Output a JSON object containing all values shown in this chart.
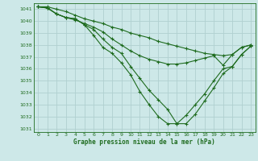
{
  "title": "Graphe pression niveau de la mer (hPa)",
  "bg_color": "#cde8e8",
  "grid_color": "#b0d0d0",
  "line_color": "#1e6b1e",
  "xlim": [
    -0.5,
    23.5
  ],
  "ylim": [
    1030.7,
    1041.5
  ],
  "yticks": [
    1031,
    1032,
    1033,
    1034,
    1035,
    1036,
    1037,
    1038,
    1039,
    1040,
    1041
  ],
  "xticks": [
    0,
    1,
    2,
    3,
    4,
    5,
    6,
    7,
    8,
    9,
    10,
    11,
    12,
    13,
    14,
    15,
    16,
    17,
    18,
    19,
    20,
    21,
    22,
    23
  ],
  "series": [
    {
      "x": [
        0,
        1,
        2,
        3,
        4,
        5,
        6,
        7,
        8,
        9,
        10,
        11,
        12,
        13,
        14,
        15,
        16,
        17,
        18,
        19,
        20,
        21,
        22,
        23
      ],
      "y": [
        1041.2,
        1041.2,
        1041.0,
        1040.8,
        1040.5,
        1040.2,
        1040.0,
        1039.8,
        1039.5,
        1039.3,
        1039.0,
        1038.8,
        1038.6,
        1038.3,
        1038.1,
        1037.9,
        1037.7,
        1037.5,
        1037.3,
        1037.2,
        1037.1,
        1037.2,
        1037.8,
        1038.0
      ]
    },
    {
      "x": [
        0,
        1,
        2,
        3,
        4,
        5,
        6,
        7,
        8,
        9,
        10,
        11,
        12,
        13,
        14,
        15,
        16,
        17,
        18,
        19,
        20,
        21,
        22,
        23
      ],
      "y": [
        1041.2,
        1041.1,
        1040.6,
        1040.3,
        1040.1,
        1039.8,
        1039.5,
        1039.1,
        1038.5,
        1038.0,
        1037.5,
        1037.1,
        1036.8,
        1036.6,
        1036.4,
        1036.4,
        1036.5,
        1036.7,
        1036.9,
        1037.1,
        1036.3,
        1037.2,
        1037.8,
        1038.0
      ]
    },
    {
      "x": [
        0,
        1,
        2,
        3,
        4,
        5,
        6,
        7,
        8,
        9,
        10,
        11,
        12,
        13,
        14,
        15,
        16,
        17,
        18,
        19,
        20,
        21,
        22,
        23
      ],
      "y": [
        1041.2,
        1041.1,
        1040.6,
        1040.3,
        1040.2,
        1039.7,
        1039.3,
        1038.5,
        1037.8,
        1037.3,
        1036.2,
        1035.2,
        1034.2,
        1033.4,
        1032.6,
        1031.4,
        1031.4,
        1032.2,
        1033.3,
        1034.4,
        1035.6,
        1036.2,
        1037.2,
        1037.9
      ]
    },
    {
      "x": [
        0,
        1,
        2,
        3,
        4,
        5,
        6,
        7,
        8,
        9,
        10,
        11,
        12,
        13,
        14,
        15,
        16,
        17,
        18,
        19,
        20,
        21,
        22,
        23
      ],
      "y": [
        1041.2,
        1041.1,
        1040.6,
        1040.3,
        1040.2,
        1039.7,
        1038.8,
        1037.8,
        1037.3,
        1036.5,
        1035.5,
        1034.1,
        1033.0,
        1032.0,
        1031.4,
        1031.4,
        1032.1,
        1033.0,
        1033.9,
        1035.0,
        1036.0,
        1036.2,
        1037.2,
        1037.9
      ]
    }
  ]
}
